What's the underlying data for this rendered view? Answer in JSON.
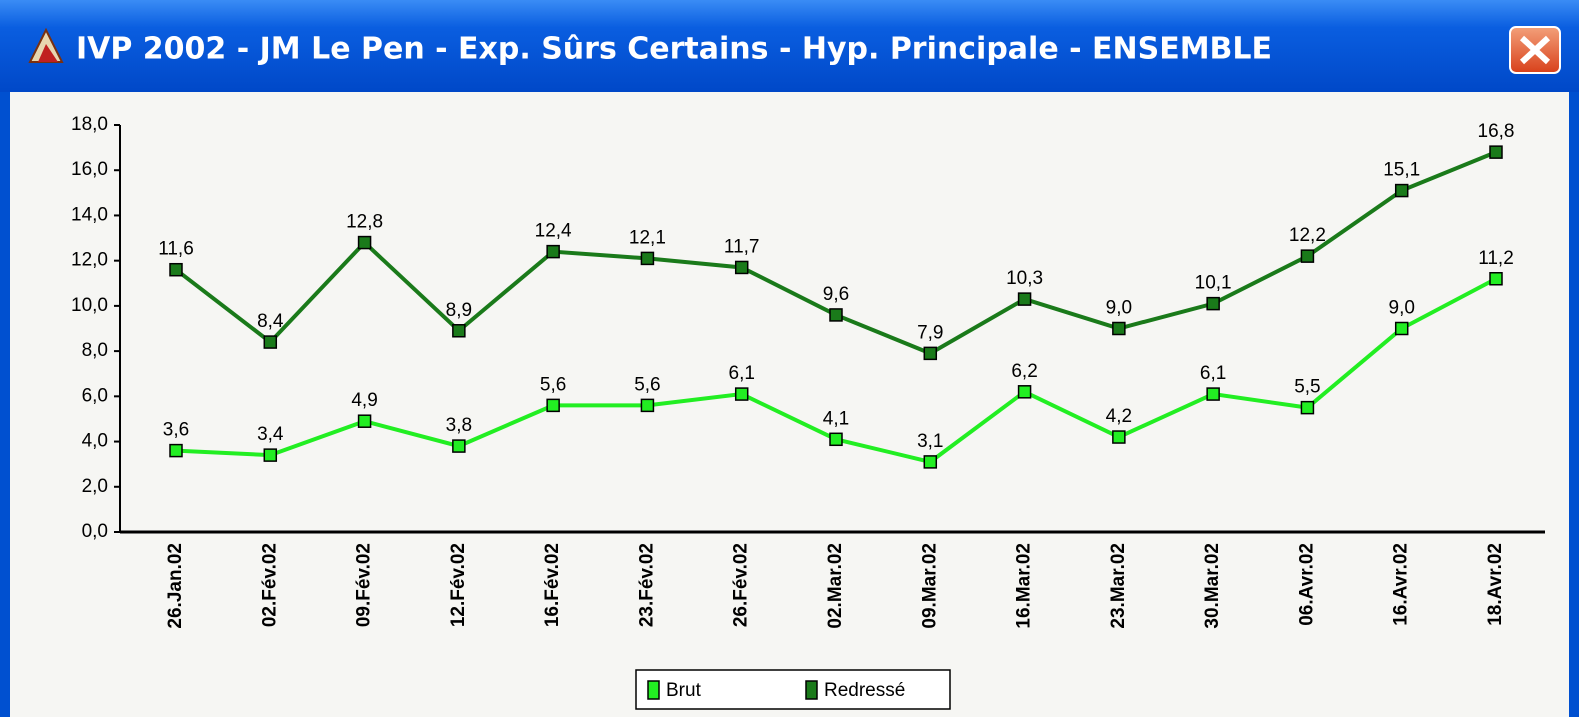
{
  "chart_data": {
    "type": "line",
    "title": "IVP 2002 - JM Le Pen - Exp. Sûrs Certains - Hyp. Principale - ENSEMBLE",
    "categories": [
      "26.Jan.02",
      "02.Fév.02",
      "09.Fév.02",
      "12.Fév.02",
      "16.Fév.02",
      "23.Fév.02",
      "26.Fév.02",
      "02.Mar.02",
      "09.Mar.02",
      "16.Mar.02",
      "23.Mar.02",
      "30.Mar.02",
      "06.Avr.02",
      "16.Avr.02",
      "18.Avr.02"
    ],
    "series": [
      {
        "name": "Brut",
        "color": "#22ee22",
        "values": [
          3.6,
          3.4,
          4.9,
          3.8,
          5.6,
          5.6,
          6.1,
          4.1,
          3.1,
          6.2,
          4.2,
          6.1,
          5.5,
          9.0,
          11.2
        ],
        "value_labels": [
          "3,6",
          "3,4",
          "4,9",
          "3,8",
          "5,6",
          "5,6",
          "6,1",
          "4,1",
          "3,1",
          "6,2",
          "4,2",
          "6,1",
          "5,5",
          "9,0",
          "11,2"
        ]
      },
      {
        "name": "Redressé",
        "color": "#1a7a1a",
        "values": [
          11.6,
          8.4,
          12.8,
          8.9,
          12.4,
          12.1,
          11.7,
          9.6,
          7.9,
          10.3,
          9.0,
          10.1,
          12.2,
          15.1,
          16.8
        ],
        "value_labels": [
          "11,6",
          "8,4",
          "12,8",
          "8,9",
          "12,4",
          "12,1",
          "11,7",
          "9,6",
          "7,9",
          "10,3",
          "9,0",
          "10,1",
          "12,2",
          "15,1",
          "16,8"
        ]
      }
    ],
    "ylim": [
      0,
      18
    ],
    "yticks": [
      {
        "value": 0,
        "label": "0,0"
      },
      {
        "value": 2,
        "label": "2,0"
      },
      {
        "value": 4,
        "label": "4,0"
      },
      {
        "value": 6,
        "label": "6,0"
      },
      {
        "value": 8,
        "label": "8,0"
      },
      {
        "value": 10,
        "label": "10,0"
      },
      {
        "value": 12,
        "label": "12,0"
      },
      {
        "value": 14,
        "label": "14,0"
      },
      {
        "value": 16,
        "label": "16,0"
      },
      {
        "value": 18,
        "label": "18,0"
      }
    ],
    "legend": "bottom"
  }
}
